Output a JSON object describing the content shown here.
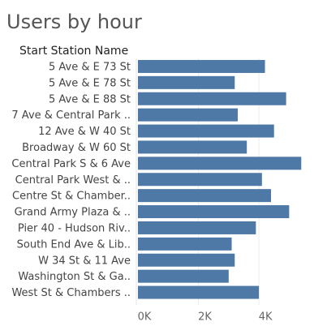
{
  "title": "Users by hour",
  "chart_data": {
    "type": "bar",
    "orientation": "horizontal",
    "title": "Users by hour",
    "row_header": "Start Station Name",
    "categories": [
      "5 Ave & E 73 St",
      "5 Ave & E 78 St",
      "5 Ave & E 88 St",
      "7 Ave & Central Park ..",
      "12 Ave & W 40 St",
      "Broadway & W 60 St",
      "Central Park S & 6 Ave",
      "Central Park West & ..",
      "Centre St & Chamber..",
      "Grand Army Plaza & ..",
      "Pier 40 - Hudson Riv..",
      "South End Ave & Lib..",
      "W 34 St & 11 Ave",
      "Washington St & Ga..",
      "West St & Chambers .."
    ],
    "values": [
      4200,
      3200,
      4900,
      3300,
      4500,
      3600,
      5400,
      4100,
      4400,
      5000,
      3900,
      3100,
      3200,
      3000,
      4000
    ],
    "xlim": [
      0,
      5500
    ],
    "xticks": [
      0,
      2000,
      4000
    ],
    "xtick_labels": [
      "0K",
      "2K",
      "4K"
    ],
    "grid": true,
    "bar_color": "#4e79a7"
  }
}
